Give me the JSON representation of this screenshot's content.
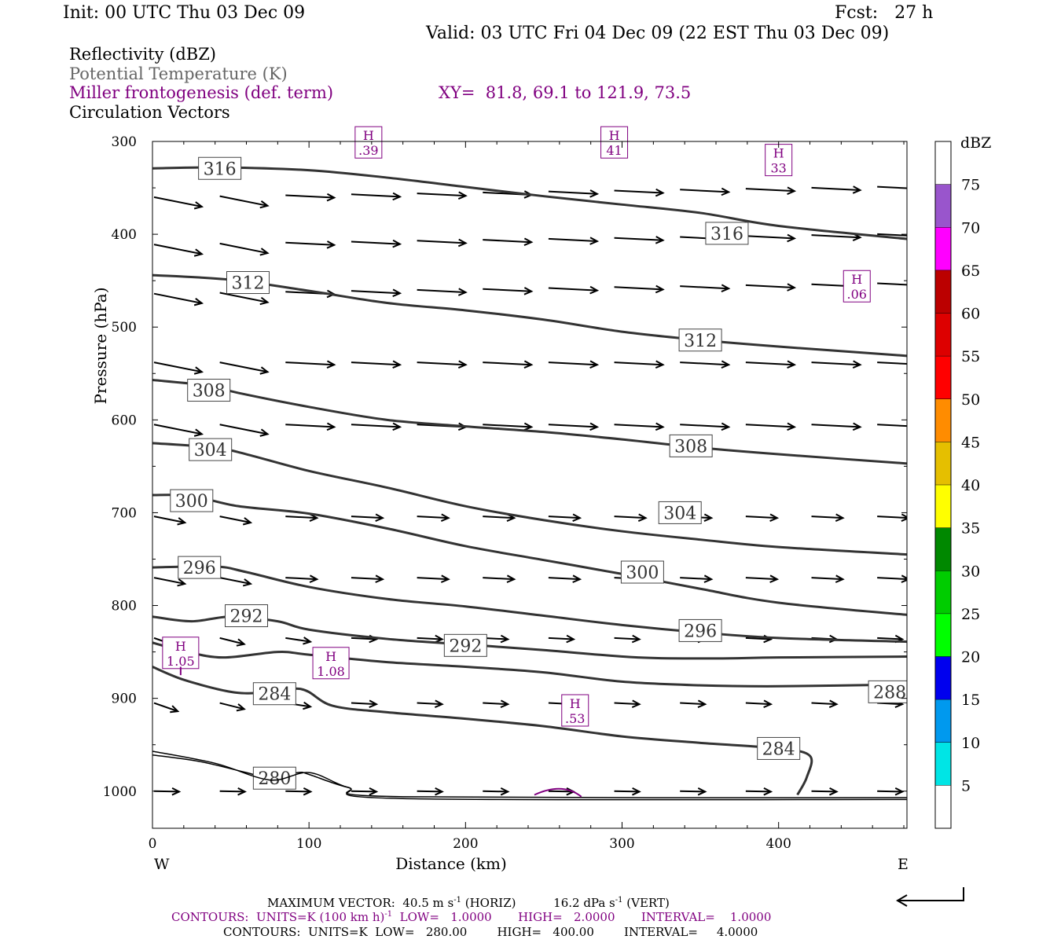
{
  "header": {
    "init": "Init: 00 UTC Thu 03 Dec 09",
    "fcst": "Fcst:   27 h",
    "valid": "Valid: 03 UTC Fri 04 Dec 09 (22 EST Thu 03 Dec 09)"
  },
  "legend": {
    "line1": "Reflectivity (dBZ)",
    "line2": "Potential Temperature (K)",
    "line3": "Miller frontogenesis (def. term)",
    "xy": "XY=  81.8, 69.1 to 121.9, 73.5",
    "line4": "Circulation Vectors"
  },
  "colors": {
    "theta": "#333333",
    "fronto": "#800080",
    "potential_text": "#666666"
  },
  "colorbar": {
    "title": "dBZ",
    "labels": [
      "5",
      "10",
      "15",
      "20",
      "25",
      "30",
      "35",
      "40",
      "45",
      "50",
      "55",
      "60",
      "65",
      "70",
      "75"
    ],
    "colors": [
      "#ffffff",
      "#00e5e5",
      "#0099ee",
      "#0000ee",
      "#00ff00",
      "#00cc00",
      "#008800",
      "#ffff00",
      "#e5bf00",
      "#ff8c00",
      "#ff0000",
      "#dd0000",
      "#bb0000",
      "#ff00ff",
      "#9955cc",
      "#ffffff"
    ]
  },
  "footer": {
    "max_vector": "MAXIMUM VECTOR:  40.5 m s",
    "max_vector_sup": "-1",
    "max_vector_mid": " (HORIZ)          16.2 dPa s",
    "max_vector_sup2": "-1",
    "max_vector_end": " (VERT)",
    "contours1_a": "CONTOURS:  UNITS=K (100 km h)",
    "contours1_sup": "-1",
    "contours1_b": "  LOW=   1.0000       HIGH=   2.0000       INTERVAL=    1.0000",
    "contours2": "CONTOURS:  UNITS=K  LOW=   280.00        HIGH=   400.00        INTERVAL=     4.0000"
  },
  "chart_data": {
    "type": "line",
    "title": "",
    "xlabel": "Distance (km)",
    "ylabel": "Pressure (hPa)",
    "xlim": [
      0,
      482
    ],
    "ylim": [
      1040,
      300
    ],
    "x_ticks": [
      0,
      100,
      200,
      300,
      400
    ],
    "x_tick_labels": [
      "0",
      "100",
      "200",
      "300",
      "400"
    ],
    "y_ticks": [
      300,
      400,
      500,
      600,
      700,
      800,
      900,
      1000
    ],
    "y_tick_labels": [
      "300",
      "400",
      "500",
      "600",
      "700",
      "800",
      "900",
      "1000"
    ],
    "west_label": "W",
    "east_label": "E",
    "theta_contours": [
      {
        "label": "316",
        "points": [
          [
            0,
            329
          ],
          [
            45,
            328
          ],
          [
            100,
            331
          ],
          [
            150,
            339
          ],
          [
            200,
            349
          ],
          [
            250,
            359
          ],
          [
            300,
            368
          ],
          [
            350,
            377
          ],
          [
            400,
            391
          ],
          [
            482,
            405
          ]
        ],
        "labels_at": [
          [
            43,
            329
          ],
          [
            367,
            399
          ]
        ]
      },
      {
        "label": "312",
        "points": [
          [
            0,
            444
          ],
          [
            50,
            449
          ],
          [
            100,
            461
          ],
          [
            150,
            474
          ],
          [
            200,
            482
          ],
          [
            250,
            492
          ],
          [
            300,
            505
          ],
          [
            350,
            514
          ],
          [
            400,
            521
          ],
          [
            482,
            531
          ]
        ],
        "labels_at": [
          [
            61,
            452
          ],
          [
            350,
            514
          ]
        ]
      },
      {
        "label": "308",
        "points": [
          [
            0,
            557
          ],
          [
            35,
            563
          ],
          [
            55,
            571
          ],
          [
            100,
            586
          ],
          [
            150,
            600
          ],
          [
            200,
            607
          ],
          [
            250,
            613
          ],
          [
            300,
            621
          ],
          [
            350,
            630
          ],
          [
            400,
            637
          ],
          [
            482,
            647
          ]
        ],
        "labels_at": [
          [
            36,
            568
          ],
          [
            344,
            628
          ]
        ]
      },
      {
        "label": "304",
        "points": [
          [
            0,
            625
          ],
          [
            40,
            630
          ],
          [
            60,
            637
          ],
          [
            100,
            655
          ],
          [
            150,
            673
          ],
          [
            200,
            693
          ],
          [
            250,
            708
          ],
          [
            300,
            720
          ],
          [
            350,
            729
          ],
          [
            400,
            737
          ],
          [
            482,
            745
          ]
        ],
        "labels_at": [
          [
            37,
            632
          ],
          [
            337,
            700
          ]
        ]
      },
      {
        "label": "300",
        "points": [
          [
            0,
            681
          ],
          [
            25,
            682
          ],
          [
            55,
            693
          ],
          [
            100,
            701
          ],
          [
            150,
            717
          ],
          [
            200,
            736
          ],
          [
            250,
            751
          ],
          [
            300,
            766
          ],
          [
            350,
            782
          ],
          [
            400,
            797
          ],
          [
            482,
            810
          ]
        ],
        "labels_at": [
          [
            25,
            687
          ],
          [
            313,
            764
          ]
        ]
      },
      {
        "label": "296",
        "points": [
          [
            0,
            759
          ],
          [
            40,
            758
          ],
          [
            60,
            764
          ],
          [
            100,
            780
          ],
          [
            150,
            793
          ],
          [
            200,
            801
          ],
          [
            250,
            811
          ],
          [
            300,
            821
          ],
          [
            350,
            829
          ],
          [
            400,
            835
          ],
          [
            482,
            839
          ]
        ],
        "labels_at": [
          [
            30,
            759
          ],
          [
            350,
            827
          ]
        ]
      },
      {
        "label": "292",
        "points": [
          [
            0,
            812
          ],
          [
            25,
            817
          ],
          [
            50,
            812
          ],
          [
            80,
            817
          ],
          [
            100,
            826
          ],
          [
            150,
            836
          ],
          [
            200,
            842
          ],
          [
            250,
            848
          ],
          [
            310,
            856
          ],
          [
            360,
            857
          ],
          [
            400,
            856
          ],
          [
            482,
            855
          ]
        ],
        "labels_at": [
          [
            60,
            811
          ],
          [
            200,
            843
          ]
        ]
      },
      {
        "label": "288",
        "points": [
          [
            0,
            840
          ],
          [
            20,
            849
          ],
          [
            45,
            856
          ],
          [
            80,
            850
          ],
          [
            100,
            853
          ],
          [
            150,
            861
          ],
          [
            200,
            866
          ],
          [
            250,
            872
          ],
          [
            300,
            882
          ],
          [
            350,
            886
          ],
          [
            400,
            887
          ],
          [
            482,
            885
          ]
        ],
        "labels_at": [
          [
            471,
            893
          ]
        ]
      },
      {
        "label": "284",
        "points": [
          [
            0,
            866
          ],
          [
            20,
            880
          ],
          [
            50,
            893
          ],
          [
            70,
            894
          ],
          [
            95,
            890
          ],
          [
            115,
            908
          ],
          [
            150,
            915
          ],
          [
            200,
            922
          ],
          [
            250,
            930
          ],
          [
            300,
            941
          ],
          [
            350,
            948
          ],
          [
            400,
            954
          ],
          [
            420,
            962
          ],
          [
            418,
            985
          ],
          [
            412,
            1004
          ]
        ],
        "labels_at": [
          [
            78,
            895
          ],
          [
            400,
            954
          ]
        ]
      },
      {
        "label": "280",
        "points": [
          [
            0,
            961
          ],
          [
            30,
            968
          ],
          [
            60,
            980
          ],
          [
            75,
            986
          ],
          [
            93,
            980
          ],
          [
            100,
            982
          ],
          [
            125,
            996
          ],
          [
            160,
            1006
          ],
          [
            482,
            1007
          ]
        ],
        "labels_at": [
          [
            78,
            986
          ]
        ]
      }
    ],
    "fronto_maxima": [
      {
        "label": "H",
        "value": ".39",
        "x": 138,
        "p": 301
      },
      {
        "label": "H",
        "value": "41",
        "x": 295,
        "p": 301
      },
      {
        "label": "H",
        "value": "33",
        "x": 400,
        "p": 320
      },
      {
        "label": "H",
        "value": ".06",
        "x": 450,
        "p": 456
      },
      {
        "label": "H",
        "value": "1.05",
        "x": 18,
        "p": 851
      },
      {
        "label": "H",
        "value": "1.08",
        "x": 114,
        "p": 862
      },
      {
        "label": "H",
        "value": ".53",
        "x": 270,
        "p": 913
      }
    ],
    "vector_rows_p": [
      360,
      411,
      464,
      538,
      605,
      704,
      770,
      835,
      905,
      1000
    ],
    "vector_x": [
      0,
      42,
      84,
      126,
      168,
      210,
      252,
      294,
      336,
      378,
      420,
      462
    ],
    "max_vector_horiz": 40.5,
    "max_vector_horiz_unit": "m s-1",
    "max_vector_vert": 16.2,
    "max_vector_vert_unit": "dPa s-1"
  }
}
